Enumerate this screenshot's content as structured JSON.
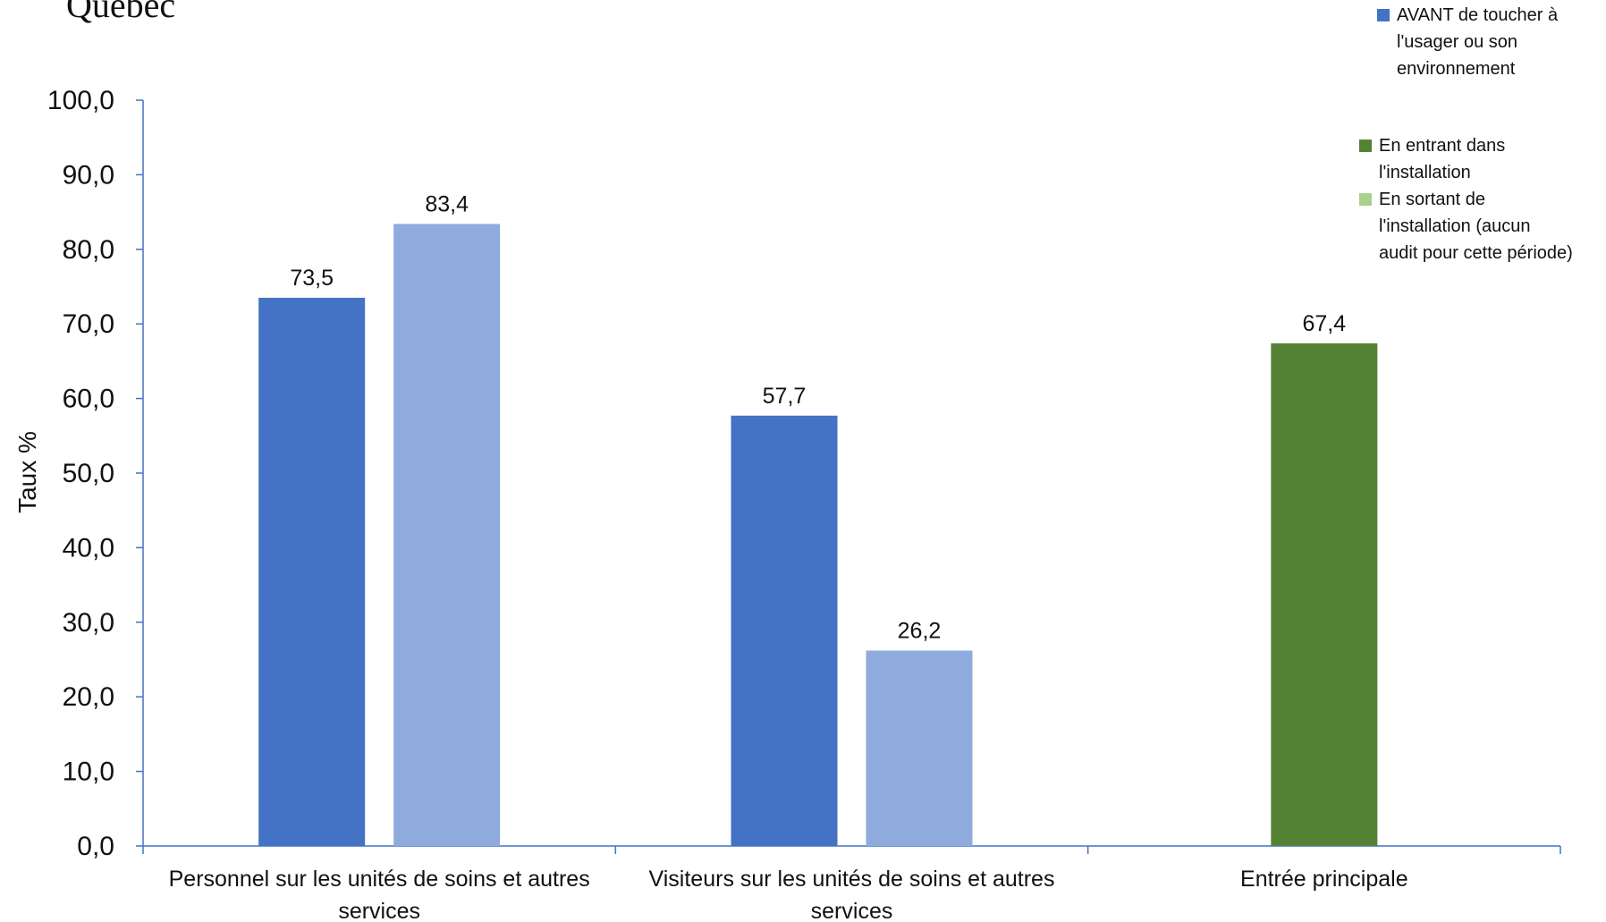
{
  "brand": {
    "text": "Québec"
  },
  "chart_data": {
    "type": "bar",
    "title": "",
    "xlabel": "",
    "ylabel": "Taux %",
    "ylim": [
      0,
      100
    ],
    "yticks": [
      "0,0",
      "10,0",
      "20,0",
      "30,0",
      "40,0",
      "50,0",
      "60,0",
      "70,0",
      "80,0",
      "90,0",
      "100,0"
    ],
    "grid": false,
    "categories": [
      "Personnel sur les unités de soins et autres services",
      "Visiteurs sur les unités de soins et autres services",
      "Entrée principale"
    ],
    "category_lines": [
      [
        "Personnel sur les unités de soins et autres",
        "services"
      ],
      [
        "Visiteurs sur les unités de soins et autres",
        "services"
      ],
      [
        "Entrée principale"
      ]
    ],
    "bars": [
      {
        "category": 0,
        "series": "AVANT de toucher à l'usager ou son environnement",
        "value": 73.5,
        "label": "73,5",
        "color": "#4472C4"
      },
      {
        "category": 0,
        "series": "light-blue",
        "value": 83.4,
        "label": "83,4",
        "color": "#8FAADC"
      },
      {
        "category": 1,
        "series": "AVANT de toucher à l'usager ou son environnement",
        "value": 57.7,
        "label": "57,7",
        "color": "#4472C4"
      },
      {
        "category": 1,
        "series": "light-blue",
        "value": 26.2,
        "label": "26,2",
        "color": "#8FAADC"
      },
      {
        "category": 2,
        "series": "En entrant dans l'installation",
        "value": 67.4,
        "label": "67,4",
        "color": "#548235"
      }
    ],
    "legend_groups": [
      {
        "placement": "top-right",
        "items": [
          {
            "label": "AVANT de toucher à\nl'usager ou son\nenvironnement",
            "color": "#4472C4"
          }
        ]
      },
      {
        "placement": "right",
        "items": [
          {
            "label": "En entrant dans\nl'installation",
            "color": "#548235"
          },
          {
            "label": "En sortant de\nl'installation (aucun\naudit pour cette période)",
            "color": "#A9D18E"
          }
        ]
      }
    ],
    "colors": {
      "axis": "#4472C4",
      "text": "#111111"
    }
  }
}
